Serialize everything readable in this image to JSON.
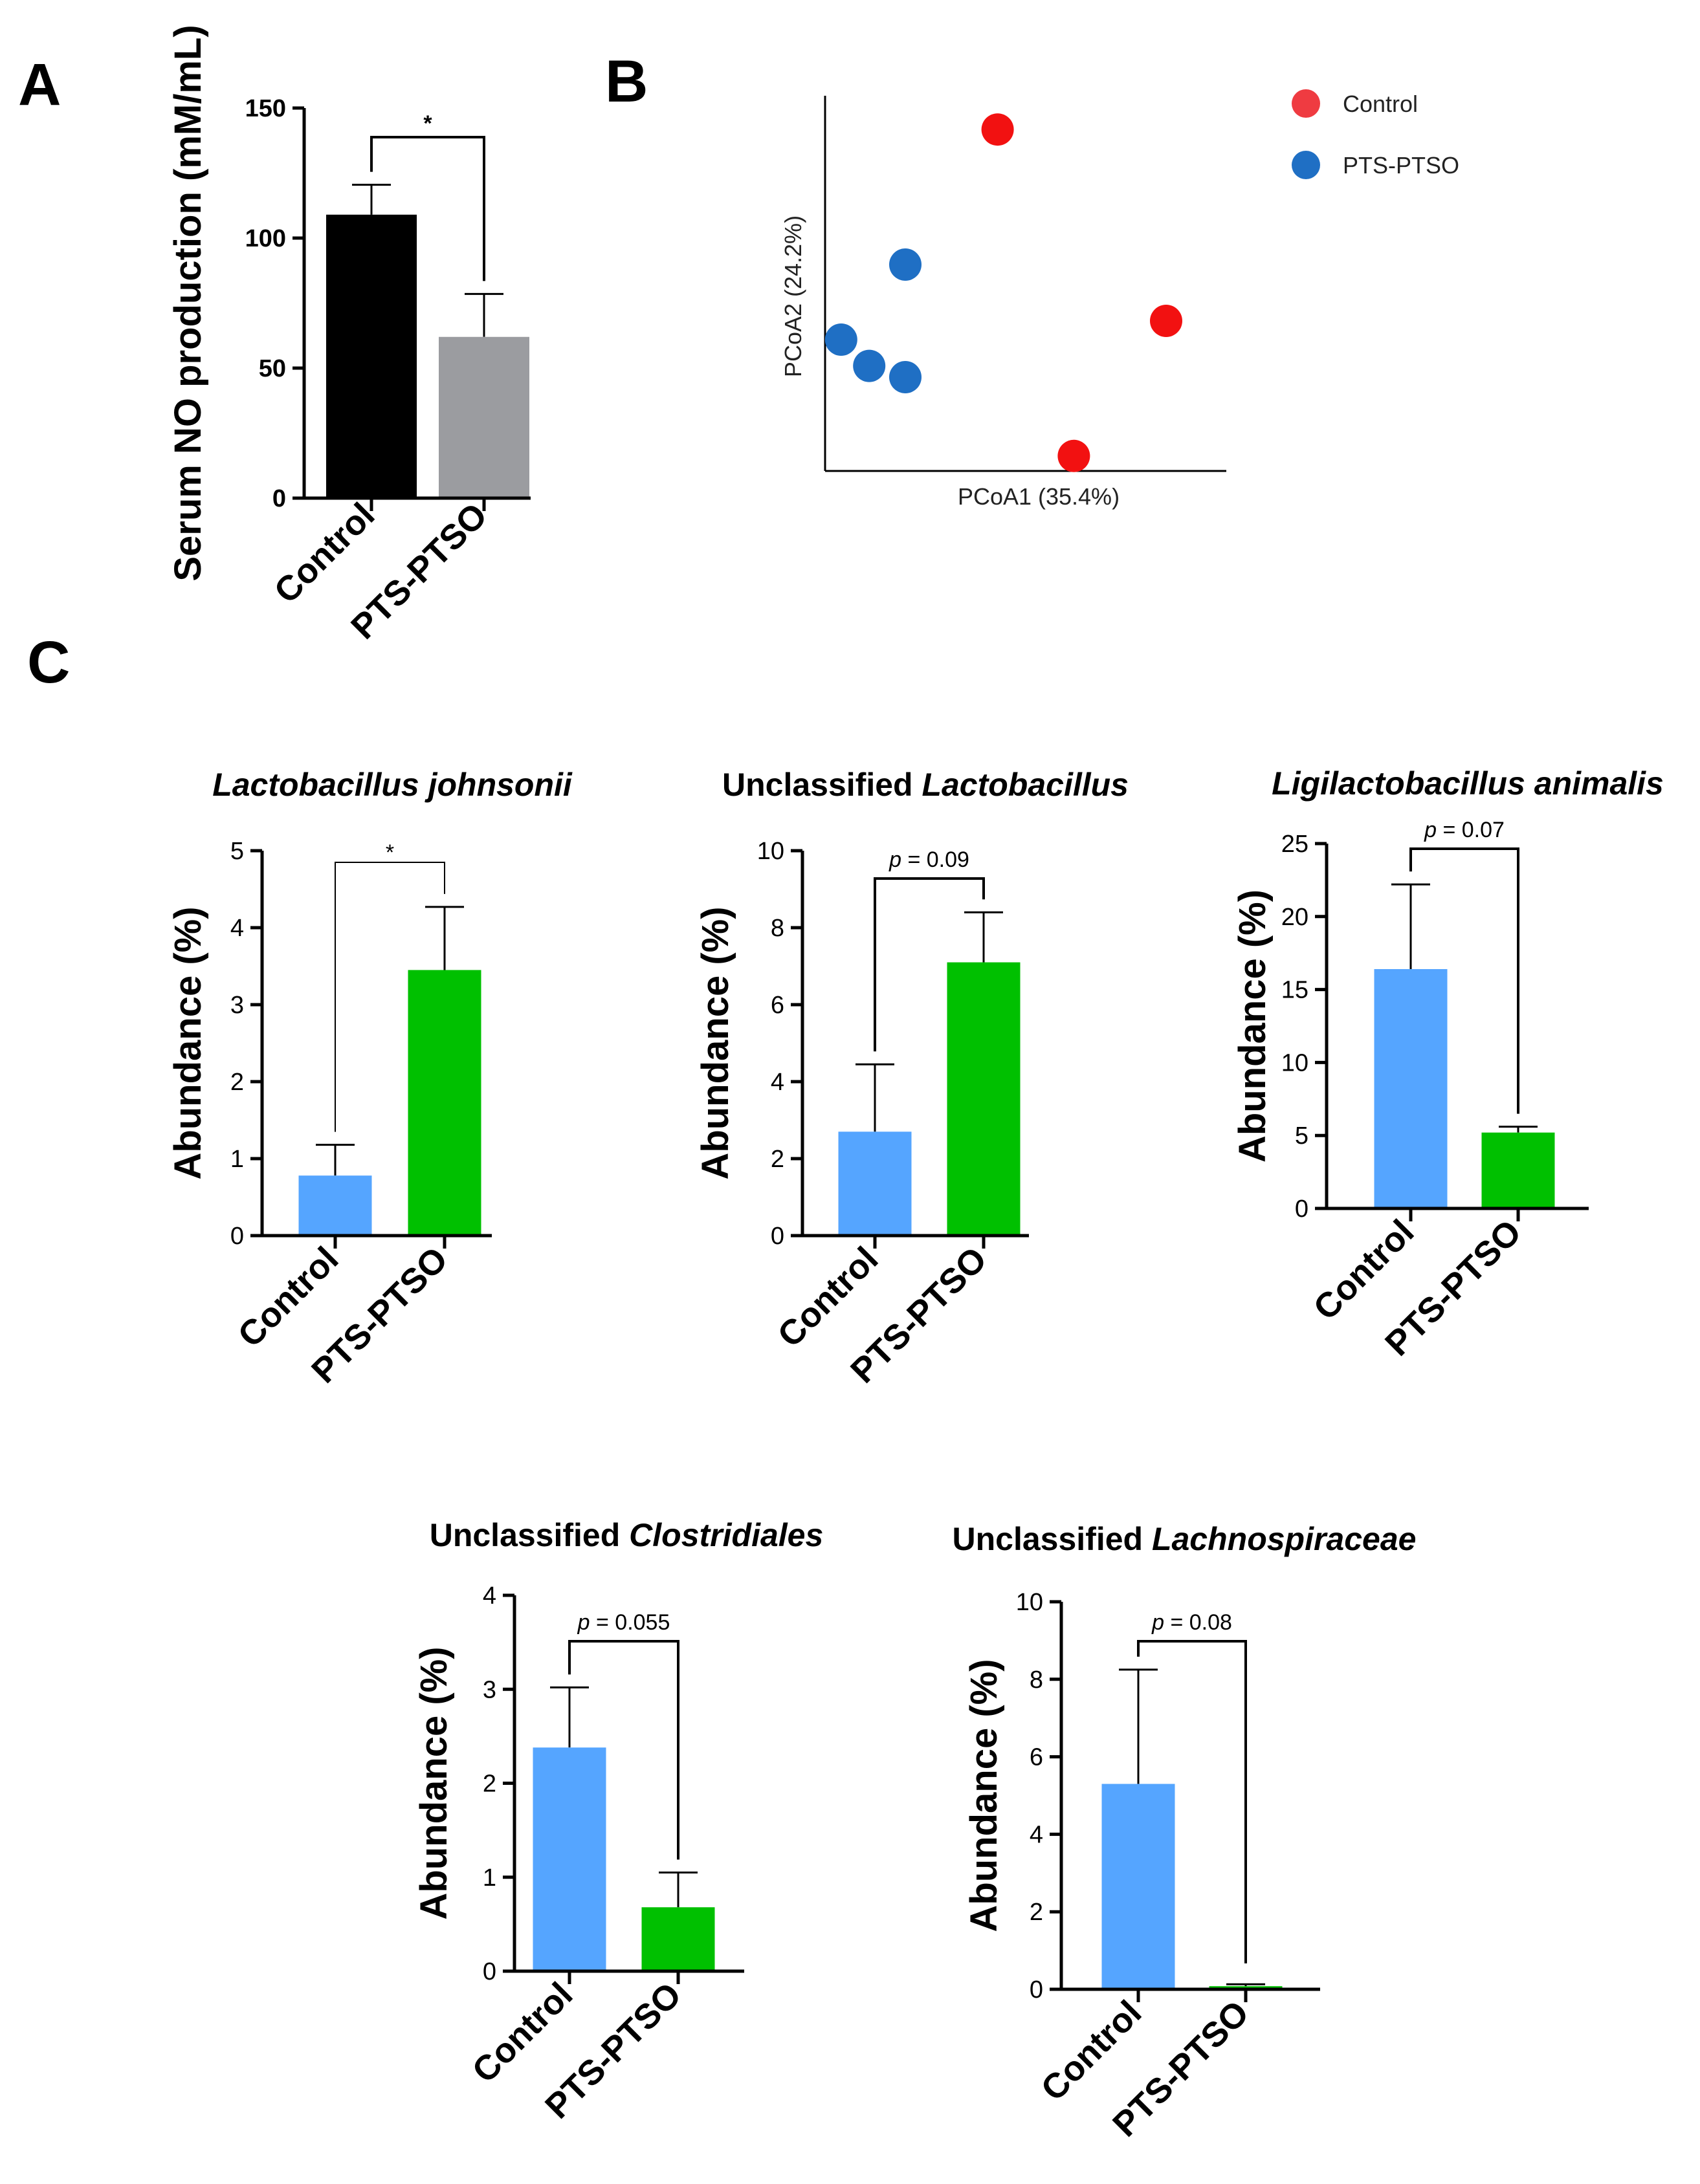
{
  "panel_labels": {
    "a": "A",
    "b": "B",
    "c": "C"
  },
  "chart_data": [
    {
      "id": "A",
      "type": "bar",
      "ylabel": "Serum NO production (mM/mL)",
      "yticks": [
        "0",
        "50",
        "100",
        "150"
      ],
      "ylim": [
        0,
        150
      ],
      "categories": [
        "Control",
        "PTS-PTSO"
      ],
      "values": [
        109,
        62
      ],
      "errors": [
        11.5,
        16.5
      ],
      "colors": [
        "#000000",
        "#9b9ca0"
      ],
      "significance": "*"
    },
    {
      "id": "B",
      "type": "scatter",
      "xlabel": "PCoA1 (35.4%)",
      "ylabel": "PCoA2 (24.2%)",
      "xlim": [
        0,
        10
      ],
      "ylim": [
        0,
        10
      ],
      "series": [
        {
          "name": "Control",
          "color": "#f21111",
          "legend_color": "#ef3b41",
          "points": [
            [
              4.3,
              9.1
            ],
            [
              8.5,
              4.0
            ],
            [
              6.2,
              0.4
            ]
          ]
        },
        {
          "name": "PTS-PTSO",
          "color": "#1f6fc4",
          "legend_color": "#1f6fc4",
          "points": [
            [
              2.0,
              5.5
            ],
            [
              0.4,
              3.5
            ],
            [
              1.1,
              2.8
            ],
            [
              2.0,
              2.5
            ]
          ]
        }
      ]
    },
    {
      "id": "C1",
      "type": "bar",
      "title_plain": "",
      "title_italic": "Lactobacillus johnsonii",
      "ylabel": "Abundance  (%)",
      "yticks": [
        "0",
        "1",
        "2",
        "3",
        "4",
        "5"
      ],
      "ylim": [
        0,
        5
      ],
      "categories": [
        "Control",
        "PTS-PTSO"
      ],
      "values": [
        0.78,
        3.45
      ],
      "errors": [
        0.4,
        0.82
      ],
      "colors": [
        "#55a5ff",
        "#00c000"
      ],
      "significance": "*"
    },
    {
      "id": "C2",
      "type": "bar",
      "title_plain": "Unclassified ",
      "title_italic": "Lactobacillus",
      "ylabel": "Abundance  (%)",
      "yticks": [
        "0",
        "2",
        "4",
        "6",
        "8",
        "10"
      ],
      "ylim": [
        0,
        10
      ],
      "categories": [
        "Control",
        "PTS-PTSO"
      ],
      "values": [
        2.7,
        7.1
      ],
      "errors": [
        1.75,
        1.3
      ],
      "colors": [
        "#55a5ff",
        "#00c000"
      ],
      "sig_p": "p",
      "significance": " = 0.09"
    },
    {
      "id": "C3",
      "type": "bar",
      "title_plain": "",
      "title_italic": "Ligilactobacillus animalis",
      "ylabel": "Abundance  (%)",
      "yticks": [
        "0",
        "5",
        "10",
        "15",
        "20",
        "25"
      ],
      "ylim": [
        0,
        25
      ],
      "categories": [
        "Control",
        "PTS-PTSO"
      ],
      "values": [
        16.4,
        5.2
      ],
      "errors": [
        5.8,
        0.4
      ],
      "colors": [
        "#55a5ff",
        "#00c000"
      ],
      "sig_p": "p",
      "significance": " = 0.07"
    },
    {
      "id": "C4",
      "type": "bar",
      "title_plain": "Unclassified ",
      "title_italic": "Clostridiales",
      "ylabel": "Abundance  (%)",
      "yticks": [
        "0",
        "1",
        "2",
        "3",
        "4"
      ],
      "ylim": [
        0,
        4
      ],
      "categories": [
        "Control",
        "PTS-PTSO"
      ],
      "values": [
        2.38,
        0.68
      ],
      "errors": [
        0.64,
        0.37
      ],
      "colors": [
        "#55a5ff",
        "#00c000"
      ],
      "sig_p": "p",
      "significance": " = 0.055"
    },
    {
      "id": "C5",
      "type": "bar",
      "title_plain": "Unclassified ",
      "title_italic": "Lachnospiraceae",
      "ylabel": "Abundance  (%)",
      "yticks": [
        "0",
        "2",
        "4",
        "6",
        "8",
        "10"
      ],
      "ylim": [
        0,
        10
      ],
      "categories": [
        "Control",
        "PTS-PTSO"
      ],
      "values": [
        5.3,
        0.08
      ],
      "errors": [
        2.95,
        0.05
      ],
      "colors": [
        "#55a5ff",
        "#00c000"
      ],
      "sig_p": "p",
      "significance": " = 0.08"
    }
  ]
}
